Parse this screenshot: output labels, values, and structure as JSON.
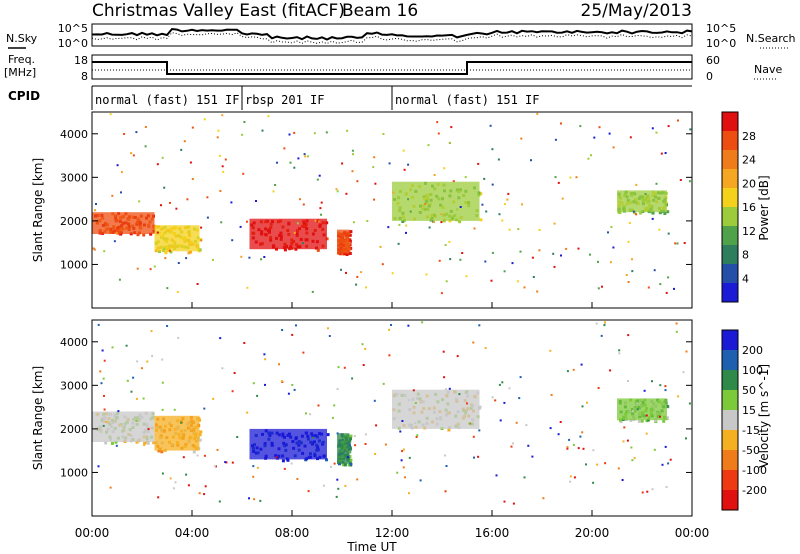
{
  "header": {
    "station": "Christmas Valley East (fitACF)",
    "beam": "Beam 16",
    "date": "25/May/2013"
  },
  "top_panels": {
    "nsky_label": "N.Sky",
    "nsearch_label": "N.Search",
    "noise_ticks_left": [
      "10^5",
      "10^0"
    ],
    "noise_ticks_right": [
      "10^5",
      "10^0"
    ],
    "freq_label_1": "Freq.",
    "freq_label_2": "[MHz]",
    "freq_ticks": [
      "18",
      "8"
    ],
    "nave_label": "Nave",
    "nave_ticks": [
      "60",
      "0"
    ],
    "cpid_label": "CPID",
    "cpid_segments": [
      {
        "label": "normal (fast) 151 IF",
        "start_h": 0,
        "end_h": 6
      },
      {
        "label": "rbsp 201 IF",
        "start_h": 6,
        "end_h": 12
      },
      {
        "label": "normal (fast) 151 IF",
        "start_h": 12,
        "end_h": 24
      }
    ]
  },
  "chart_data": [
    {
      "type": "heatmap",
      "title": "",
      "xlabel": "Time UT",
      "ylabel": "Slant Range [km]",
      "xlim": [
        0,
        24
      ],
      "ylim": [
        0,
        4500
      ],
      "yticks": [
        "1000",
        "2000",
        "3000",
        "4000"
      ],
      "xticks": [
        "00:00",
        "04:00",
        "08:00",
        "12:00",
        "16:00",
        "20:00",
        "00:00"
      ],
      "colorbar": {
        "label": "Power [dB]",
        "ticks": [
          "4",
          "8",
          "12",
          "16",
          "20",
          "24",
          "28"
        ],
        "colors": [
          "#1b1bd6",
          "#244ea8",
          "#2e7d5c",
          "#4fa24a",
          "#9ccc3c",
          "#f4d21c",
          "#f5a623",
          "#f07b1a",
          "#ee4d12",
          "#e01010"
        ]
      },
      "bands": [
        {
          "t0": 0.0,
          "t1": 2.5,
          "r0": 1700,
          "r1": 2200,
          "level": 8
        },
        {
          "t0": 2.5,
          "t1": 4.3,
          "r0": 1300,
          "r1": 1900,
          "level": 5
        },
        {
          "t0": 6.3,
          "t1": 9.4,
          "r0": 1350,
          "r1": 2050,
          "level": 9
        },
        {
          "t0": 9.8,
          "t1": 10.3,
          "r0": 1250,
          "r1": 1800,
          "level": 8
        },
        {
          "t0": 12.0,
          "t1": 15.5,
          "r0": 2000,
          "r1": 2900,
          "level": 4
        },
        {
          "t0": 21.0,
          "t1": 23.0,
          "r0": 2200,
          "r1": 2700,
          "level": 4
        }
      ]
    },
    {
      "type": "heatmap",
      "title": "",
      "xlabel": "Time UT",
      "ylabel": "Slant Range [km]",
      "xlim": [
        0,
        24
      ],
      "ylim": [
        0,
        4500
      ],
      "yticks": [
        "1000",
        "2000",
        "3000",
        "4000"
      ],
      "xticks": [
        "00:00",
        "04:00",
        "08:00",
        "12:00",
        "16:00",
        "20:00",
        "00:00"
      ],
      "colorbar": {
        "label": "Velocity [m s^-1]",
        "ticks": [
          "200",
          "100",
          "50",
          "15",
          "-15",
          "-50",
          "-100",
          "-200"
        ],
        "colors": [
          "#1b1bd6",
          "#1f5fb0",
          "#2f8a4a",
          "#7cc93a",
          "#c8c8c8",
          "#f5b022",
          "#f07b1a",
          "#ee3a12",
          "#e01010"
        ]
      },
      "bands": [
        {
          "t0": 0.0,
          "t1": 2.5,
          "r0": 1700,
          "r1": 2400,
          "level": 4
        },
        {
          "t0": 2.5,
          "t1": 4.3,
          "r0": 1500,
          "r1": 2300,
          "level": 5
        },
        {
          "t0": 6.3,
          "t1": 9.4,
          "r0": 1300,
          "r1": 2000,
          "level": 0
        },
        {
          "t0": 9.8,
          "t1": 10.3,
          "r0": 1200,
          "r1": 1900,
          "level": 2
        },
        {
          "t0": 12.0,
          "t1": 15.5,
          "r0": 2000,
          "r1": 2900,
          "level": 4
        },
        {
          "t0": 21.0,
          "t1": 23.0,
          "r0": 2200,
          "r1": 2700,
          "level": 3
        }
      ]
    }
  ]
}
